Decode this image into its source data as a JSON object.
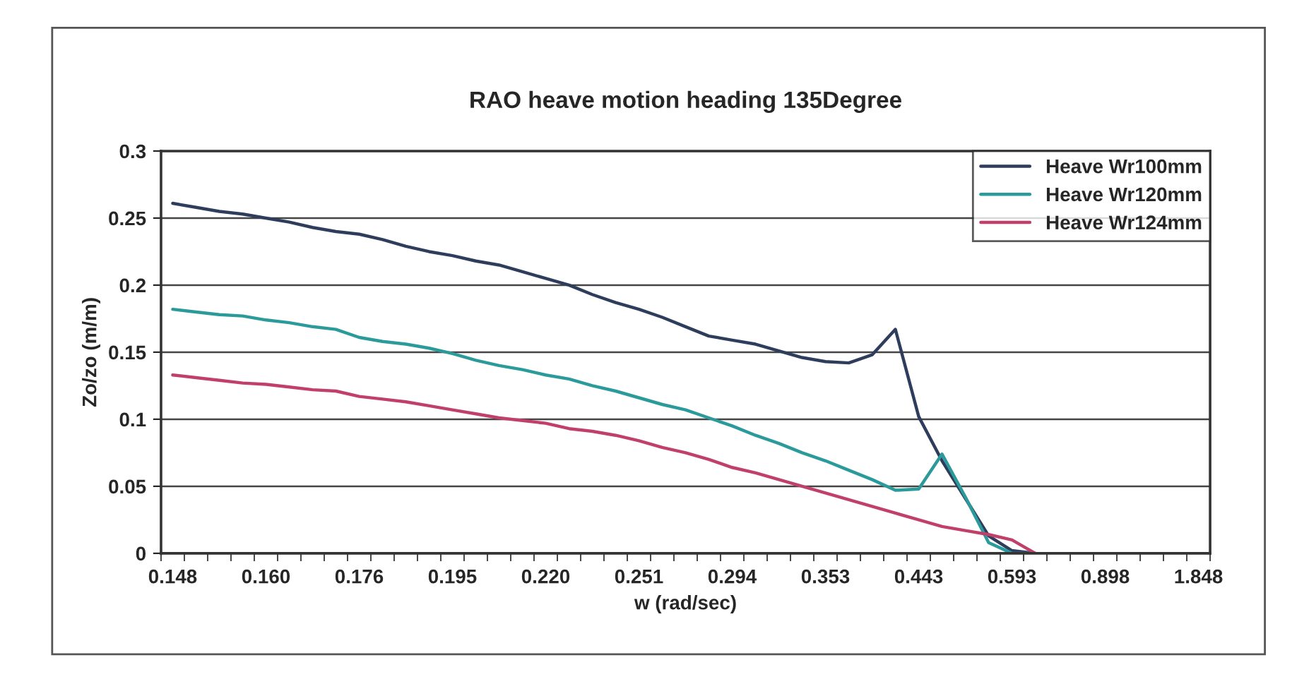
{
  "chart_data": {
    "type": "line",
    "title": "RAO heave motion heading 135Degree",
    "xlabel": "w (rad/sec)",
    "ylabel": "Zo/zo (m/m)",
    "categories": [
      "0.148",
      null,
      null,
      null,
      "0.160",
      null,
      null,
      null,
      "0.176",
      null,
      null,
      null,
      "0.195",
      null,
      null,
      null,
      "0.220",
      null,
      null,
      null,
      "0.251",
      null,
      null,
      null,
      "0.294",
      null,
      null,
      null,
      "0.353",
      null,
      null,
      null,
      "0.443",
      null,
      null,
      null,
      "0.593",
      null,
      null,
      null,
      "0.898",
      null,
      null,
      null,
      "1.848"
    ],
    "series": [
      {
        "name": "Heave Wr100mm",
        "color": "#2f3d5c",
        "values": [
          0.261,
          0.258,
          0.255,
          0.253,
          0.25,
          0.247,
          0.243,
          0.24,
          0.238,
          0.234,
          0.229,
          0.225,
          0.222,
          0.218,
          0.215,
          0.21,
          0.205,
          0.2,
          0.193,
          0.187,
          0.182,
          0.176,
          0.169,
          0.162,
          0.159,
          0.156,
          0.151,
          0.146,
          0.143,
          0.142,
          0.148,
          0.167,
          0.102,
          0.069,
          0.041,
          0.013,
          0.002,
          0,
          null,
          null,
          null,
          null,
          null,
          null,
          null
        ]
      },
      {
        "name": "Heave Wr120mm",
        "color": "#2a9a9a",
        "values": [
          0.182,
          0.18,
          0.178,
          0.177,
          0.174,
          0.172,
          0.169,
          0.167,
          0.161,
          0.158,
          0.156,
          0.153,
          0.149,
          0.144,
          0.14,
          0.137,
          0.133,
          0.13,
          0.125,
          0.121,
          0.116,
          0.111,
          0.107,
          0.101,
          0.095,
          0.088,
          0.082,
          0.075,
          0.069,
          0.062,
          0.055,
          0.047,
          0.048,
          0.074,
          0.042,
          0.008,
          0,
          0,
          null,
          null,
          null,
          null,
          null,
          null,
          null
        ]
      },
      {
        "name": "Heave Wr124mm",
        "color": "#c0406a",
        "values": [
          0.133,
          0.131,
          0.129,
          0.127,
          0.126,
          0.124,
          0.122,
          0.121,
          0.117,
          0.115,
          0.113,
          0.11,
          0.107,
          0.104,
          0.101,
          0.099,
          0.097,
          0.093,
          0.091,
          0.088,
          0.084,
          0.079,
          0.075,
          0.07,
          0.064,
          0.06,
          0.055,
          0.05,
          0.045,
          0.04,
          0.035,
          0.03,
          0.025,
          0.02,
          0.017,
          0.014,
          0.01,
          0,
          null,
          null,
          null,
          null,
          null,
          null,
          null
        ]
      }
    ],
    "ylim": [
      0,
      0.3
    ],
    "yticks": [
      0,
      0.05,
      0.1,
      0.15,
      0.2,
      0.25,
      0.3
    ],
    "grid": "y",
    "legend": "top right",
    "marker": "none",
    "line_style": "solid"
  }
}
